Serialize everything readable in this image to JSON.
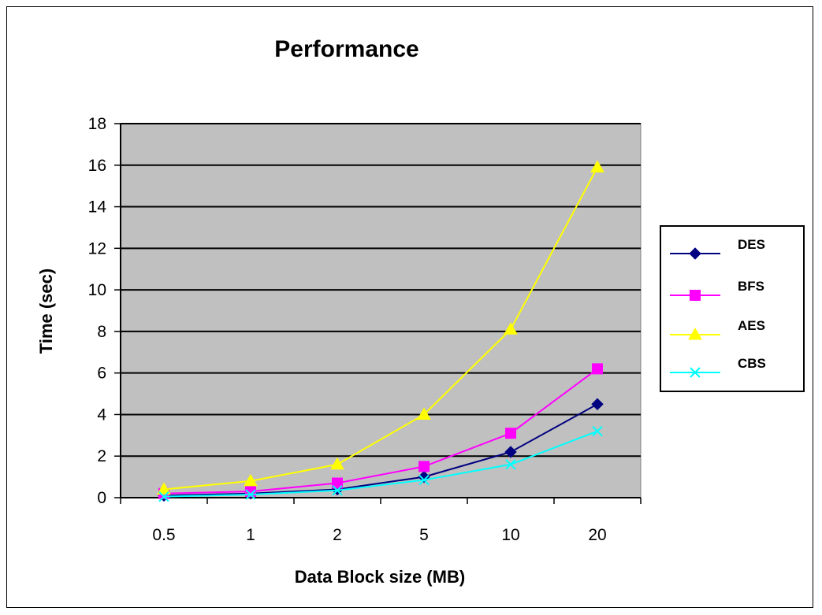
{
  "chart_data": {
    "type": "line",
    "title": "Performance",
    "xlabel": "Data Block size (MB)",
    "ylabel": "Time (sec)",
    "categories": [
      "0.5",
      "1",
      "2",
      "5",
      "10",
      "20"
    ],
    "ylim": [
      0,
      18
    ],
    "yticks": [
      "0",
      "2",
      "4",
      "6",
      "8",
      "10",
      "12",
      "14",
      "16",
      "18"
    ],
    "grid": true,
    "legend": "right",
    "plot_background": "#c0c0c0",
    "series": [
      {
        "name": "DES",
        "color": "#000080",
        "marker": "diamond",
        "values": [
          0.1,
          0.2,
          0.4,
          1.0,
          2.2,
          4.5
        ]
      },
      {
        "name": "BFS",
        "color": "#ff00ff",
        "marker": "square",
        "values": [
          0.2,
          0.3,
          0.7,
          1.5,
          3.1,
          6.2
        ]
      },
      {
        "name": "AES",
        "color": "#ffff00",
        "marker": "triangle",
        "values": [
          0.4,
          0.8,
          1.6,
          4.0,
          8.1,
          15.9
        ]
      },
      {
        "name": "CBS",
        "color": "#00ffff",
        "marker": "x",
        "values": [
          0.05,
          0.15,
          0.35,
          0.85,
          1.6,
          3.2
        ]
      }
    ]
  }
}
